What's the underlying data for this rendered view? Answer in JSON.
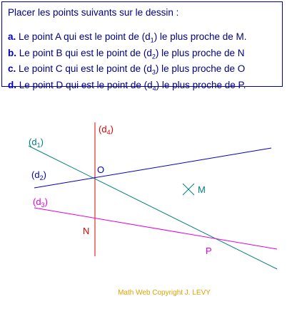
{
  "instructions": {
    "title": "Placer les points suivants sur le dessin :",
    "items": [
      {
        "letter": "a.",
        "before": "Le point A qui est le point de (d",
        "sub": "1",
        "after": ") le plus proche de M."
      },
      {
        "letter": "b.",
        "before": "Le point B qui est le point de (d",
        "sub": "2",
        "after": ") le plus proche de N"
      },
      {
        "letter": "c.",
        "before": "Le point C qui est le point de (d",
        "sub": "3",
        "after": ") le plus proche de O"
      },
      {
        "letter": "d.",
        "before": "Le point D qui est le point de (d",
        "sub": "4",
        "after": ") le plus proche de P."
      }
    ]
  },
  "lines": [
    {
      "open": "(d",
      "sub": "4",
      "close": ")"
    },
    {
      "open": "(d",
      "sub": "1",
      "close": ")"
    },
    {
      "open": "(d",
      "sub": "2",
      "close": ")"
    },
    {
      "open": "(d",
      "sub": "3",
      "close": ")"
    }
  ],
  "points": {
    "O": "O",
    "M": "M",
    "N": "N",
    "P": "P"
  },
  "footer": "Math Web Copyright J. LEVY"
}
